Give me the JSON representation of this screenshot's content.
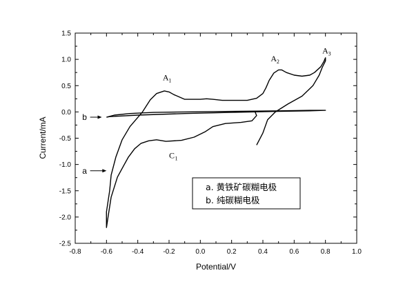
{
  "chart_data": {
    "type": "line",
    "title": "",
    "xlabel": "Potential/V",
    "ylabel": "Current/mA",
    "xlim": [
      -0.8,
      1.0
    ],
    "ylim": [
      -2.5,
      1.5
    ],
    "xticks": [
      "-0.8",
      "-0.6",
      "-0.4",
      "-0.2",
      "0.0",
      "0.2",
      "0.4",
      "0.6",
      "0.8",
      "1.0"
    ],
    "yticks": [
      "1.5",
      "1.0",
      "0.5",
      "0.0",
      "-0.5",
      "-1.0",
      "-1.5",
      "-2.0",
      "-2.5"
    ],
    "grid": false,
    "series": [
      {
        "name": "a",
        "x": [
          0.36,
          0.4,
          0.43,
          0.48,
          0.56,
          0.65,
          0.72,
          0.76,
          0.78,
          0.8,
          0.8,
          0.79,
          0.77,
          0.73,
          0.7,
          0.65,
          0.6,
          0.55,
          0.52,
          0.5,
          0.47,
          0.44,
          0.42,
          0.4,
          0.36,
          0.3,
          0.22,
          0.14,
          0.08,
          0.04,
          0.0,
          -0.1,
          -0.17,
          -0.2,
          -0.23,
          -0.28,
          -0.32,
          -0.37,
          -0.45,
          -0.5,
          -0.54,
          -0.57,
          -0.58,
          -0.6,
          -0.6,
          -0.59,
          -0.57,
          -0.53,
          -0.49,
          -0.46,
          -0.42,
          -0.38,
          -0.33,
          -0.28,
          -0.22,
          -0.12,
          -0.04,
          0.03,
          0.08,
          0.16,
          0.26,
          0.33,
          0.36,
          0.35
        ],
        "y": [
          -0.63,
          -0.4,
          -0.15,
          0.0,
          0.15,
          0.3,
          0.5,
          0.7,
          0.85,
          0.97,
          1.03,
          0.96,
          0.86,
          0.75,
          0.7,
          0.68,
          0.7,
          0.75,
          0.8,
          0.8,
          0.74,
          0.6,
          0.46,
          0.35,
          0.26,
          0.22,
          0.22,
          0.22,
          0.24,
          0.25,
          0.24,
          0.24,
          0.33,
          0.38,
          0.4,
          0.35,
          0.23,
          0.0,
          -0.28,
          -0.53,
          -0.86,
          -1.2,
          -1.5,
          -1.9,
          -2.2,
          -2.0,
          -1.62,
          -1.24,
          -1.02,
          -0.86,
          -0.7,
          -0.6,
          -0.55,
          -0.53,
          -0.56,
          -0.54,
          -0.48,
          -0.38,
          -0.28,
          -0.22,
          -0.2,
          -0.17,
          -0.07,
          0.0
        ]
      },
      {
        "name": "b",
        "x": [
          -0.6,
          -0.55,
          -0.45,
          -0.3,
          -0.1,
          0.2,
          0.5,
          0.7,
          0.8,
          0.7,
          0.5,
          0.2,
          -0.1,
          -0.4,
          -0.58,
          -0.6
        ],
        "y": [
          -0.1,
          -0.06,
          -0.03,
          -0.01,
          0.0,
          0.01,
          0.02,
          0.03,
          0.03,
          0.02,
          0.01,
          -0.01,
          -0.03,
          -0.06,
          -0.09,
          -0.1
        ]
      }
    ],
    "annotations": [
      {
        "label": "A",
        "sub": "1",
        "x": -0.24,
        "y": 0.6
      },
      {
        "label": "A",
        "sub": "2",
        "x": 0.45,
        "y": 0.96
      },
      {
        "label": "A",
        "sub": "3",
        "x": 0.78,
        "y": 1.11
      },
      {
        "label": "C",
        "sub": "1",
        "x": -0.2,
        "y": -0.88
      }
    ],
    "curve_labels": [
      {
        "label": "b",
        "x": -0.74,
        "y": -0.1,
        "arrow_to_x": -0.63
      },
      {
        "label": "a",
        "x": -0.74,
        "y": -1.12,
        "arrow_to_x": -0.6
      }
    ],
    "legend": {
      "placement": "lower-right",
      "entries": [
        "a. 黄铁矿碳糊电极",
        "b. 纯碳糊电极"
      ]
    }
  }
}
